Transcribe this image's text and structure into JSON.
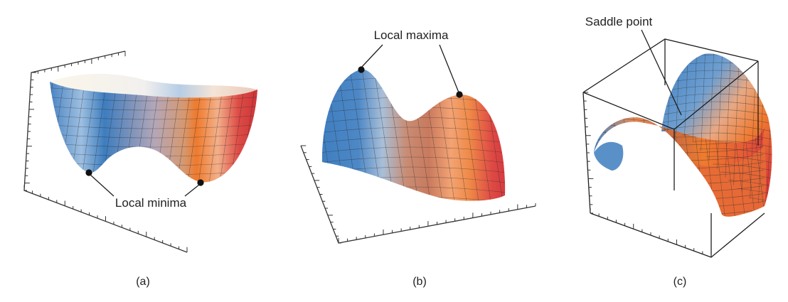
{
  "panels": [
    {
      "id": "a",
      "caption": "(a)",
      "annotation": "Local minima"
    },
    {
      "id": "b",
      "caption": "(b)",
      "annotation": "Local maxima"
    },
    {
      "id": "c",
      "caption": "(c)",
      "annotation": "Saddle point"
    }
  ],
  "colors": {
    "blue": "#3f7fc0",
    "light": "#f5eee2",
    "orange": "#ef7b2e",
    "red": "#d8383c",
    "axis": "#333333",
    "marker": "#111111",
    "text": "#222222"
  }
}
